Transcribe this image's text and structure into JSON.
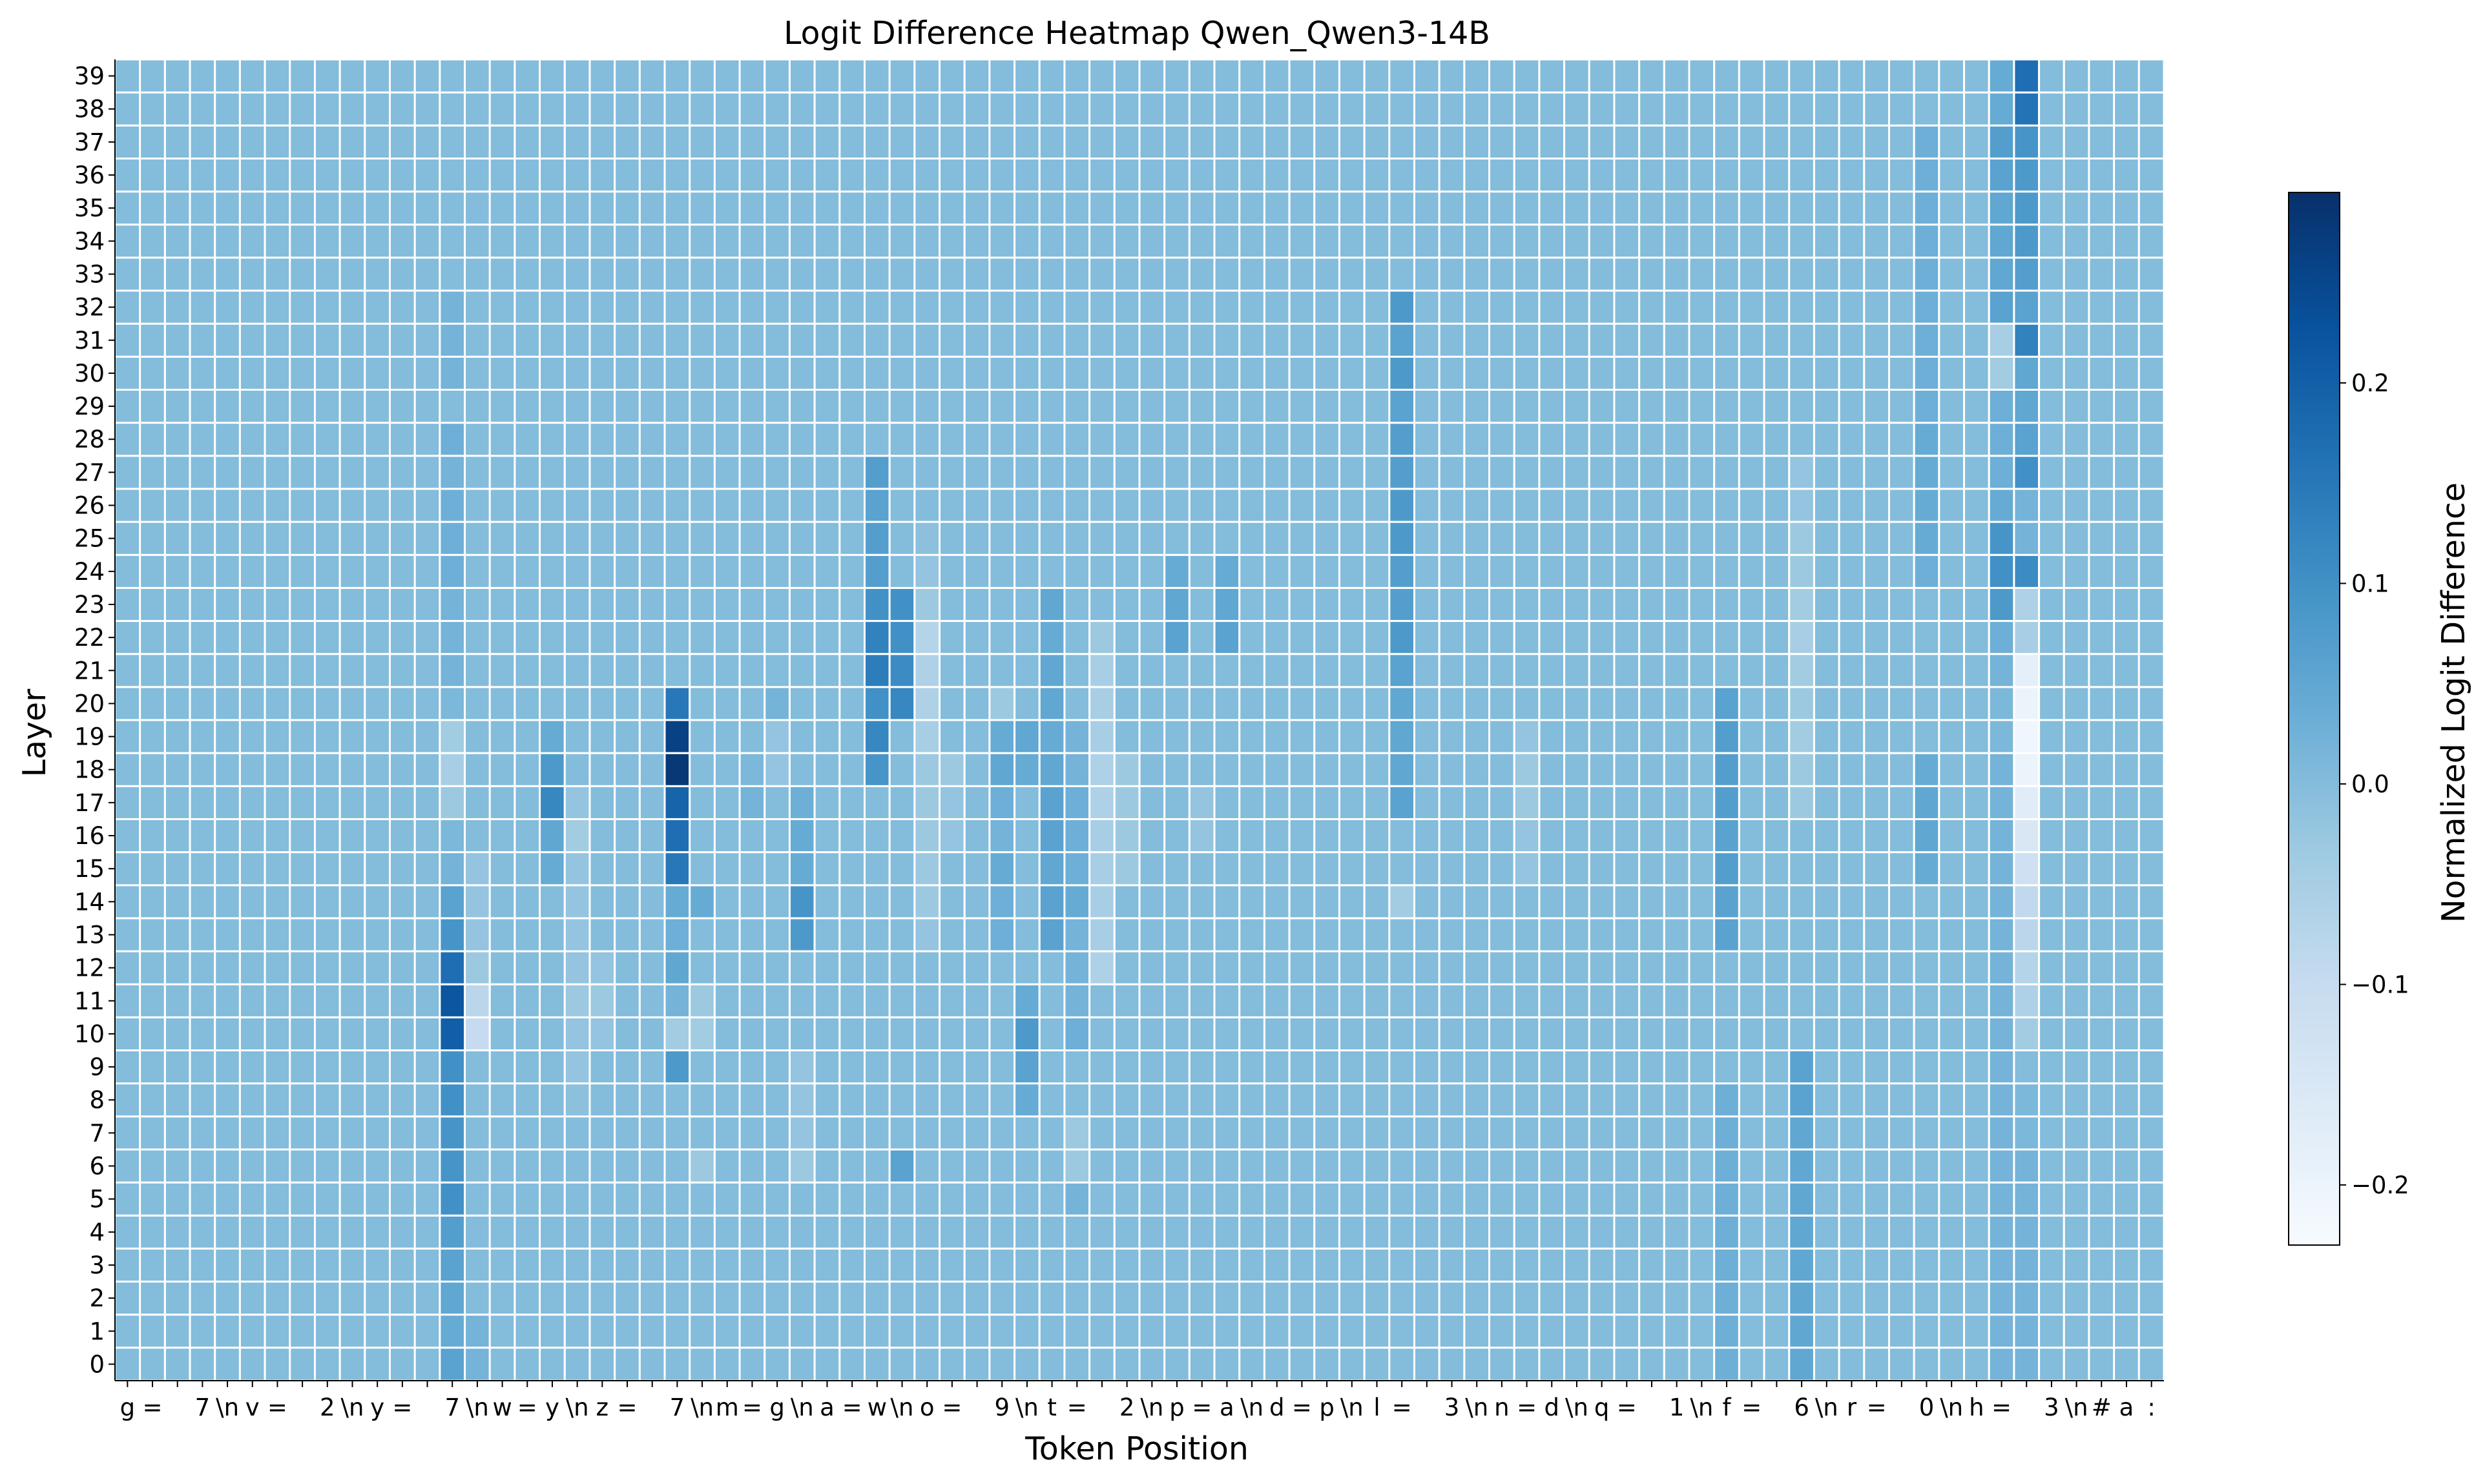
{
  "chart_data": {
    "type": "heatmap",
    "title": "Logit Difference Heatmap Qwen_Qwen3-14B",
    "xlabel": "Token Position",
    "ylabel": "Layer",
    "colorbar_label": "Normalized Logit Difference",
    "colormap": "Blues",
    "colorbar_range": [
      -0.23,
      0.295
    ],
    "colorbar_ticks": [
      "−0.2",
      "−0.1",
      "0.0",
      "0.1",
      "0.2"
    ],
    "colorbar_tick_values": [
      -0.2,
      -0.1,
      0.0,
      0.1,
      0.2
    ],
    "layers": [
      "0",
      "1",
      "2",
      "3",
      "4",
      "5",
      "6",
      "7",
      "8",
      "9",
      "10",
      "11",
      "12",
      "13",
      "14",
      "15",
      "16",
      "17",
      "18",
      "19",
      "20",
      "21",
      "22",
      "23",
      "24",
      "25",
      "26",
      "27",
      "28",
      "29",
      "30",
      "31",
      "32",
      "33",
      "34",
      "35",
      "36",
      "37",
      "38",
      "39"
    ],
    "tokens": [
      "g",
      " =",
      "",
      "7",
      "\\n",
      "v",
      " =",
      "",
      "2",
      "\\n",
      "y",
      " =",
      "",
      "7",
      "\\n",
      "w",
      " =",
      "y",
      "\\n",
      "z",
      " =",
      "",
      "7",
      "\\n",
      "m",
      " =",
      "g",
      "\\n",
      "a",
      " =",
      "w",
      "\\n",
      "o",
      " =",
      "",
      "9",
      "\\n",
      "t",
      " =",
      "",
      "2",
      "\\n",
      "p",
      " =",
      "a",
      "\\n",
      "d",
      " =",
      "p",
      "\\n",
      "l",
      " =",
      "",
      "3",
      "\\n",
      "n",
      " =",
      "d",
      "\\n",
      "q",
      " =",
      "",
      "1",
      "\\n",
      "f",
      " =",
      "",
      "6",
      "\\n",
      "r",
      " =",
      "",
      "0",
      "\\n",
      "h",
      " =",
      "",
      "3",
      "\\n",
      "#",
      "a",
      ":"
    ],
    "baseline_value": 0.0,
    "cells_by_token": [
      {
        "token": 13,
        "values": {
          "0": 0.06,
          "1": 0.04,
          "2": 0.05,
          "3": 0.06,
          "4": 0.07,
          "5": 0.1,
          "6": 0.09,
          "7": 0.09,
          "8": 0.1,
          "9": 0.1,
          "10": 0.2,
          "11": 0.22,
          "12": 0.17,
          "13": 0.09,
          "14": 0.06,
          "15": 0.02,
          "16": 0.01,
          "17": -0.03,
          "18": -0.05,
          "19": -0.04,
          "20": 0.01,
          "21": 0.02,
          "22": 0.02,
          "23": 0.02,
          "24": 0.03,
          "25": 0.03,
          "26": 0.03,
          "27": 0.02,
          "28": 0.03,
          "30": 0.02,
          "31": 0.02,
          "32": 0.02
        }
      },
      {
        "token": 14,
        "values": {
          "0": 0.02,
          "1": 0.02,
          "10": -0.1,
          "11": -0.08,
          "12": -0.03,
          "13": -0.02,
          "14": -0.02,
          "15": -0.02
        }
      },
      {
        "token": 17,
        "values": {
          "15": 0.04,
          "16": 0.05,
          "17": 0.12,
          "18": 0.08,
          "19": 0.04
        }
      },
      {
        "token": 18,
        "values": {
          "8": -0.01,
          "9": -0.02,
          "10": -0.02,
          "11": -0.03,
          "12": -0.02,
          "13": -0.02,
          "14": -0.02,
          "15": -0.02,
          "16": -0.04,
          "17": -0.02
        }
      },
      {
        "token": 19,
        "values": {
          "10": -0.02,
          "11": -0.03,
          "12": -0.02
        }
      },
      {
        "token": 22,
        "values": {
          "9": 0.08,
          "10": -0.04,
          "11": 0.02,
          "12": 0.05,
          "13": 0.03,
          "14": 0.04,
          "15": 0.15,
          "16": 0.17,
          "17": 0.19,
          "18": 0.28,
          "19": 0.26,
          "20": 0.15
        }
      },
      {
        "token": 23,
        "values": {
          "10": -0.04,
          "11": -0.03,
          "14": 0.04,
          "6": -0.03
        }
      },
      {
        "token": 25,
        "values": {
          "17": 0.02,
          "18": 0.01
        }
      },
      {
        "token": 26,
        "values": {
          "18": -0.02,
          "19": -0.02,
          "20": 0.02
        }
      },
      {
        "token": 27,
        "values": {
          "13": 0.08,
          "14": 0.09,
          "15": 0.04,
          "16": 0.04,
          "17": 0.03,
          "6": -0.03,
          "7": -0.02,
          "8": -0.02,
          "9": -0.02
        }
      },
      {
        "token": 30,
        "values": {
          "18": 0.09,
          "19": 0.12,
          "20": 0.1,
          "21": 0.14,
          "22": 0.13,
          "23": 0.1,
          "24": 0.07,
          "25": 0.07,
          "26": 0.06,
          "27": 0.07
        }
      },
      {
        "token": 31,
        "values": {
          "20": 0.12,
          "21": 0.11,
          "22": 0.1,
          "23": 0.1,
          "6": 0.06
        }
      },
      {
        "token": 32,
        "values": {
          "13": -0.02,
          "14": -0.03,
          "15": -0.03,
          "16": -0.03,
          "17": -0.03,
          "18": -0.03,
          "19": -0.05,
          "20": -0.06,
          "21": -0.06,
          "22": -0.07,
          "23": -0.03,
          "24": -0.02,
          "25": -0.01
        }
      },
      {
        "token": 33,
        "values": {
          "16": -0.02,
          "17": -0.02,
          "18": -0.03
        }
      },
      {
        "token": 35,
        "values": {
          "13": 0.03,
          "14": 0.03,
          "15": 0.04,
          "16": 0.02,
          "17": 0.03,
          "18": 0.05,
          "19": 0.04,
          "20": -0.03
        }
      },
      {
        "token": 36,
        "values": {
          "8": 0.04,
          "9": 0.06,
          "10": 0.08,
          "11": 0.04,
          "18": 0.04,
          "19": 0.05
        }
      },
      {
        "token": 37,
        "values": {
          "13": 0.06,
          "14": 0.06,
          "15": 0.05,
          "16": 0.06,
          "17": 0.06,
          "18": 0.05,
          "19": 0.04,
          "20": 0.05,
          "21": 0.05,
          "22": 0.04,
          "23": 0.05
        }
      },
      {
        "token": 38,
        "values": {
          "10": 0.03,
          "11": 0.02,
          "12": 0.02,
          "13": 0.02,
          "14": 0.04,
          "15": 0.03,
          "16": 0.03,
          "17": 0.03,
          "18": 0.02,
          "19": 0.02,
          "5": 0.02,
          "7": -0.03,
          "6": -0.03
        }
      },
      {
        "token": 39,
        "values": {
          "12": -0.06,
          "13": -0.05,
          "14": -0.05,
          "15": -0.05,
          "16": -0.05,
          "17": -0.06,
          "18": -0.06,
          "19": -0.05,
          "20": -0.05,
          "21": -0.05,
          "22": -0.03
        }
      },
      {
        "token": 40,
        "values": {
          "15": -0.03,
          "16": -0.03,
          "17": -0.03,
          "18": -0.03
        }
      },
      {
        "token": 42,
        "values": {
          "22": 0.06,
          "23": 0.05,
          "24": 0.04
        }
      },
      {
        "token": 43,
        "values": {
          "16": -0.02,
          "17": -0.02
        }
      },
      {
        "token": 44,
        "values": {
          "22": 0.06,
          "23": 0.05,
          "24": 0.04
        }
      },
      {
        "token": 51,
        "values": {
          "17": 0.06,
          "18": 0.05,
          "19": 0.05,
          "20": 0.05,
          "21": 0.06,
          "22": 0.08,
          "23": 0.07,
          "24": 0.07,
          "25": 0.08,
          "26": 0.08,
          "27": 0.07,
          "28": 0.07,
          "29": 0.06,
          "30": 0.08,
          "31": 0.06,
          "32": 0.08,
          "14": -0.04
        }
      },
      {
        "token": 56,
        "values": {
          "15": -0.02,
          "16": -0.02,
          "17": -0.03,
          "18": -0.03,
          "19": -0.02
        }
      },
      {
        "token": 64,
        "values": {
          "13": 0.06,
          "14": 0.06,
          "15": 0.07,
          "16": 0.06,
          "17": 0.07,
          "18": 0.07,
          "19": 0.07,
          "20": 0.06,
          "0": 0.03,
          "1": 0.03,
          "2": 0.03,
          "3": 0.03,
          "4": 0.03,
          "5": 0.03,
          "6": 0.03,
          "7": 0.03,
          "8": 0.03
        }
      },
      {
        "token": 67,
        "values": {
          "0": 0.05,
          "1": 0.05,
          "2": 0.05,
          "3": 0.05,
          "4": 0.05,
          "5": 0.05,
          "6": 0.05,
          "7": 0.05,
          "8": 0.06,
          "9": 0.06,
          "17": -0.03,
          "18": -0.03,
          "19": -0.04,
          "20": -0.03,
          "21": -0.04,
          "22": -0.05,
          "23": -0.04,
          "24": -0.03,
          "25": -0.03,
          "26": -0.02,
          "27": -0.02
        }
      },
      {
        "token": 72,
        "values": {
          "15": 0.04,
          "16": 0.05,
          "17": 0.05,
          "18": 0.04,
          "24": 0.03,
          "25": 0.04,
          "26": 0.04,
          "27": 0.04,
          "28": 0.04,
          "29": 0.03,
          "30": 0.03,
          "31": 0.03,
          "32": 0.03,
          "33": 0.03,
          "34": 0.03,
          "35": 0.03,
          "36": 0.03,
          "37": 0.03
        }
      },
      {
        "token": 75,
        "values": {
          "0": 0.02,
          "1": 0.02,
          "2": 0.02,
          "3": 0.02,
          "4": 0.02,
          "5": 0.02,
          "6": 0.02,
          "7": 0.02,
          "8": 0.02,
          "9": 0.02,
          "10": 0.02,
          "11": 0.02,
          "12": 0.02,
          "13": 0.02,
          "14": 0.02,
          "15": 0.02,
          "16": 0.02,
          "17": 0.02,
          "18": 0.02,
          "19": 0.01,
          "20": 0.01,
          "21": 0.02,
          "22": 0.03,
          "23": 0.08,
          "24": 0.1,
          "25": 0.09,
          "26": 0.04,
          "27": 0.03,
          "28": 0.03,
          "29": 0.03,
          "30": -0.04,
          "31": -0.05,
          "32": 0.06,
          "33": 0.05,
          "34": 0.05,
          "35": 0.05,
          "36": 0.06,
          "37": 0.07,
          "38": 0.04,
          "39": 0.04
        }
      },
      {
        "token": 76,
        "values": {
          "0": 0.02,
          "1": 0.02,
          "2": 0.02,
          "3": 0.02,
          "4": 0.02,
          "5": 0.02,
          "6": 0.02,
          "7": 0.01,
          "8": 0.01,
          "9": 0.0,
          "10": -0.04,
          "11": -0.06,
          "12": -0.07,
          "13": -0.08,
          "14": -0.09,
          "15": -0.12,
          "16": -0.15,
          "17": -0.17,
          "18": -0.2,
          "19": -0.21,
          "20": -0.2,
          "21": -0.18,
          "22": -0.05,
          "23": -0.06,
          "24": 0.11,
          "25": 0.02,
          "26": 0.02,
          "27": 0.1,
          "28": 0.06,
          "29": 0.05,
          "30": 0.05,
          "31": 0.13,
          "32": 0.06,
          "33": 0.07,
          "34": 0.08,
          "35": 0.08,
          "36": 0.08,
          "37": 0.09,
          "38": 0.16,
          "39": 0.17
        }
      }
    ]
  }
}
